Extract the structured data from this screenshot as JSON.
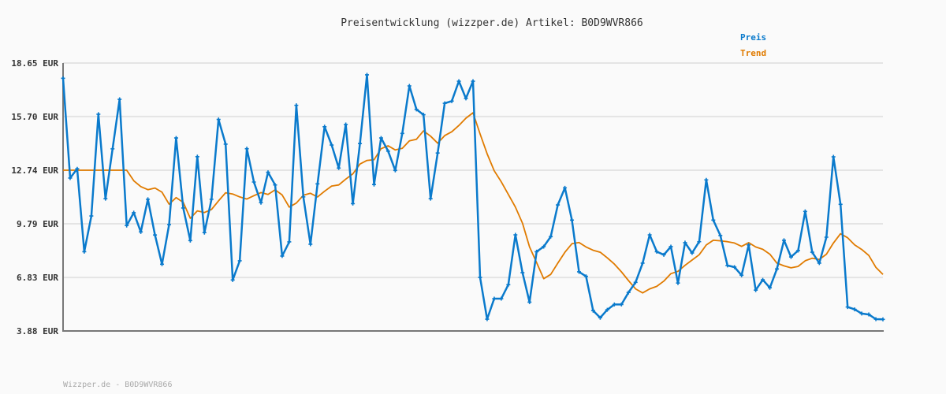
{
  "chart_data": {
    "type": "line",
    "title": "Preisentwicklung (wizzper.de) Artikel: B0D9WVR866",
    "xlabel": "",
    "ylabel": "",
    "ylim": [
      3.88,
      18.65
    ],
    "yticks": [
      "18.65 EUR",
      "15.70 EUR",
      "12.74 EUR",
      "9.79 EUR",
      "6.83 EUR",
      "3.88 EUR"
    ],
    "ytick_values": [
      18.65,
      15.7,
      12.74,
      9.79,
      6.83,
      3.88
    ],
    "grid": true,
    "legend_position": "top-right",
    "series": [
      {
        "name": "Preis",
        "color": "#0a7acc",
        "values": [
          17.81,
          12.31,
          12.82,
          8.25,
          10.22,
          15.83,
          11.17,
          13.92,
          16.65,
          9.69,
          10.4,
          9.34,
          11.14,
          9.17,
          7.56,
          9.74,
          14.52,
          10.66,
          8.86,
          13.49,
          9.3,
          11.14,
          15.54,
          14.18,
          6.69,
          7.75,
          13.93,
          12.09,
          10.95,
          12.63,
          11.93,
          8.01,
          8.79,
          16.32,
          11.27,
          8.66,
          11.99,
          15.14,
          14.13,
          12.86,
          15.26,
          10.9,
          14.21,
          18.0,
          11.95,
          14.52,
          13.79,
          12.73,
          14.77,
          17.39,
          16.09,
          15.8,
          11.17,
          13.69,
          16.43,
          16.55,
          17.65,
          16.7,
          17.65,
          6.83,
          4.53,
          5.66,
          5.66,
          6.43,
          9.18,
          7.09,
          5.47,
          8.25,
          8.53,
          9.08,
          10.83,
          11.77,
          9.99,
          7.14,
          6.89,
          5.0,
          4.61,
          5.05,
          5.34,
          5.34,
          6.0,
          6.56,
          7.62,
          9.18,
          8.25,
          8.08,
          8.53,
          6.52,
          8.75,
          8.18,
          8.8,
          12.21,
          9.99,
          9.14,
          7.49,
          7.4,
          6.95,
          8.62,
          6.13,
          6.7,
          6.26,
          7.3,
          8.88,
          7.96,
          8.31,
          10.47,
          8.22,
          7.62,
          9.05,
          13.48,
          10.86,
          5.2,
          5.07,
          4.84,
          4.79,
          4.53,
          4.52
        ]
      },
      {
        "name": "Trend",
        "color": "#e07b00",
        "values": [
          12.74,
          12.74,
          12.74,
          12.74,
          12.74,
          12.74,
          12.74,
          12.74,
          12.74,
          12.74,
          12.16,
          11.84,
          11.67,
          11.76,
          11.53,
          10.87,
          11.23,
          10.97,
          10.09,
          10.5,
          10.41,
          10.58,
          11.05,
          11.5,
          11.43,
          11.27,
          11.15,
          11.34,
          11.51,
          11.41,
          11.66,
          11.38,
          10.71,
          10.93,
          11.36,
          11.47,
          11.27,
          11.58,
          11.87,
          11.93,
          12.25,
          12.54,
          13.08,
          13.28,
          13.32,
          13.93,
          14.09,
          13.86,
          13.95,
          14.36,
          14.45,
          14.91,
          14.62,
          14.23,
          14.65,
          14.86,
          15.21,
          15.61,
          15.91,
          14.74,
          13.65,
          12.71,
          12.1,
          11.41,
          10.71,
          9.82,
          8.52,
          7.65,
          6.76,
          7.0,
          7.62,
          8.22,
          8.69,
          8.76,
          8.51,
          8.33,
          8.22,
          7.91,
          7.57,
          7.14,
          6.66,
          6.2,
          5.98,
          6.2,
          6.34,
          6.63,
          7.04,
          7.17,
          7.5,
          7.79,
          8.08,
          8.62,
          8.88,
          8.85,
          8.8,
          8.73,
          8.54,
          8.75,
          8.51,
          8.38,
          8.11,
          7.62,
          7.47,
          7.36,
          7.44,
          7.75,
          7.89,
          7.82,
          8.11,
          8.73,
          9.24,
          9.02,
          8.63,
          8.37,
          8.04,
          7.39,
          7.0
        ]
      }
    ]
  },
  "footer": "Wizzper.de - B0D9WVR866",
  "colors": {
    "background": "#fafafa",
    "grid": "#e4e4e4",
    "axis": "#777777"
  }
}
